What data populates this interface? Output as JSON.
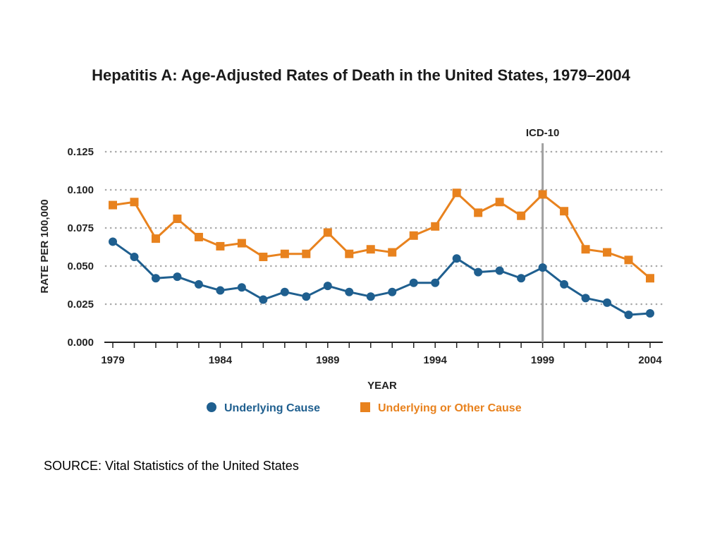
{
  "chart_data": {
    "type": "line",
    "title": "Hepatitis A:  Age-Adjusted Rates of Death in the United States, 1979–2004",
    "xlabel": "YEAR",
    "ylabel": "RATE PER 100,000",
    "ylim": [
      0,
      0.125
    ],
    "xlim": [
      1979,
      2004
    ],
    "yticks": [
      "0.000",
      "0.025",
      "0.050",
      "0.075",
      "0.100",
      "0.125"
    ],
    "xticks": [
      "1979",
      "1984",
      "1989",
      "1994",
      "1999",
      "2004"
    ],
    "grid": "horizontal-dotted",
    "legend_position": "bottom",
    "x": [
      1979,
      1980,
      1981,
      1982,
      1983,
      1984,
      1985,
      1986,
      1987,
      1988,
      1989,
      1990,
      1991,
      1992,
      1993,
      1994,
      1995,
      1996,
      1997,
      1998,
      1999,
      2000,
      2001,
      2002,
      2003,
      2004
    ],
    "series": [
      {
        "name": "Underlying Cause",
        "color": "#1f5f8f",
        "marker": "circle",
        "values": [
          0.066,
          0.056,
          0.042,
          0.043,
          0.038,
          0.034,
          0.036,
          0.028,
          0.033,
          0.03,
          0.037,
          0.033,
          0.03,
          0.033,
          0.039,
          0.039,
          0.055,
          0.046,
          0.047,
          0.042,
          0.049,
          0.038,
          0.029,
          0.026,
          0.018,
          0.019
        ]
      },
      {
        "name": "Underlying or Other Cause",
        "color": "#e8821e",
        "marker": "square",
        "values": [
          0.09,
          0.092,
          0.068,
          0.081,
          0.069,
          0.063,
          0.065,
          0.056,
          0.058,
          0.058,
          0.072,
          0.058,
          0.061,
          0.059,
          0.07,
          0.076,
          0.098,
          0.085,
          0.092,
          0.083,
          0.097,
          0.086,
          0.061,
          0.059,
          0.054,
          0.042
        ]
      }
    ],
    "annotations": [
      {
        "label": "ICD-10",
        "x": 1999
      }
    ]
  },
  "source": "SOURCE:  Vital Statistics of the United States"
}
